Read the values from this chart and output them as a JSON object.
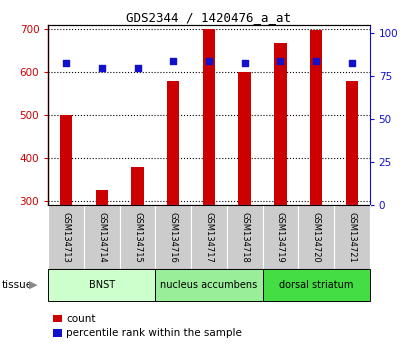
{
  "title": "GDS2344 / 1420476_a_at",
  "samples": [
    "GSM134713",
    "GSM134714",
    "GSM134715",
    "GSM134716",
    "GSM134717",
    "GSM134718",
    "GSM134719",
    "GSM134720",
    "GSM134721"
  ],
  "counts": [
    500,
    325,
    378,
    580,
    700,
    600,
    668,
    697,
    580
  ],
  "percentiles": [
    83,
    80,
    80,
    84,
    84,
    83,
    84,
    84,
    83
  ],
  "ylim_left": [
    290,
    710
  ],
  "ylim_right": [
    0,
    105
  ],
  "yticks_left": [
    300,
    400,
    500,
    600,
    700
  ],
  "yticks_right": [
    0,
    25,
    50,
    75,
    100
  ],
  "bar_color": "#cc0000",
  "dot_color": "#1111cc",
  "bar_bottom": 290,
  "bar_width": 0.35,
  "groups": [
    {
      "label": "BNST",
      "start": 0,
      "end": 3,
      "color": "#ccffcc"
    },
    {
      "label": "nucleus accumbens",
      "start": 3,
      "end": 6,
      "color": "#99ee99"
    },
    {
      "label": "dorsal striatum",
      "start": 6,
      "end": 9,
      "color": "#44dd44"
    }
  ],
  "legend_count_color": "#cc0000",
  "legend_dot_color": "#1111cc",
  "sample_box_color": "#cccccc",
  "left_tick_color": "#cc0000",
  "right_tick_color": "#1111cc"
}
